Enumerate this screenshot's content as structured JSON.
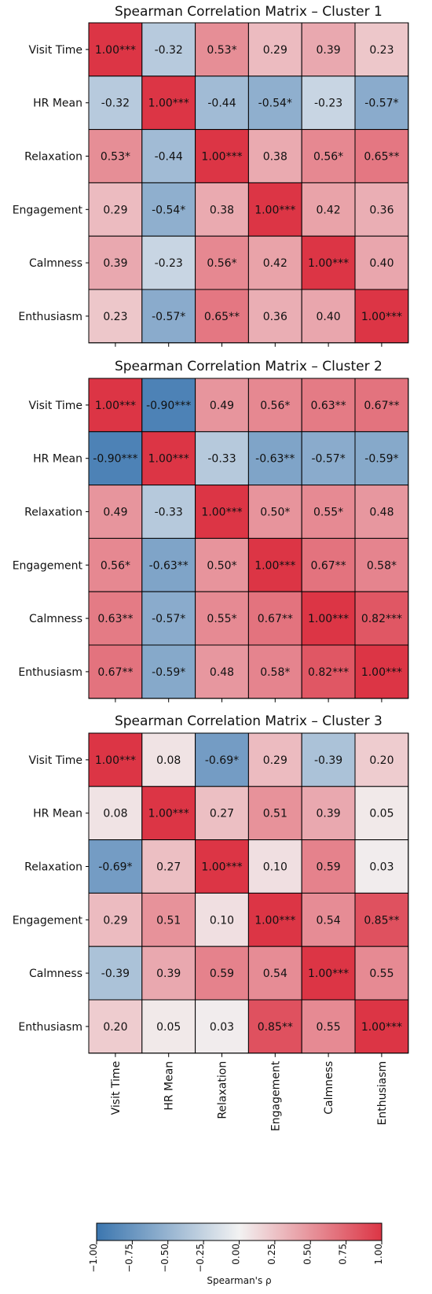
{
  "chart_data": [
    {
      "type": "heatmap",
      "title": "Spearman Correlation Matrix – Cluster 1",
      "rows": [
        "Visit Time",
        "HR Mean",
        "Relaxation",
        "Engagement",
        "Calmness",
        "Enthusiasm"
      ],
      "cols": [
        "Visit Time",
        "HR Mean",
        "Relaxation",
        "Engagement",
        "Calmness",
        "Enthusiasm"
      ],
      "values": [
        [
          1.0,
          -0.32,
          0.53,
          0.29,
          0.39,
          0.23
        ],
        [
          -0.32,
          1.0,
          -0.44,
          -0.54,
          -0.23,
          -0.57
        ],
        [
          0.53,
          -0.44,
          1.0,
          0.38,
          0.56,
          0.65
        ],
        [
          0.29,
          -0.54,
          0.38,
          1.0,
          0.42,
          0.36
        ],
        [
          0.39,
          -0.23,
          0.56,
          0.42,
          1.0,
          0.4
        ],
        [
          0.23,
          -0.57,
          0.65,
          0.36,
          0.4,
          1.0
        ]
      ],
      "labels": [
        [
          "1.00***",
          "-0.32",
          "0.53*",
          "0.29",
          "0.39",
          "0.23"
        ],
        [
          "-0.32",
          "1.00***",
          "-0.44",
          "-0.54*",
          "-0.23",
          "-0.57*"
        ],
        [
          "0.53*",
          "-0.44",
          "1.00***",
          "0.38",
          "0.56*",
          "0.65**"
        ],
        [
          "0.29",
          "-0.54*",
          "0.38",
          "1.00***",
          "0.42",
          "0.36"
        ],
        [
          "0.39",
          "-0.23",
          "0.56*",
          "0.42",
          "1.00***",
          "0.40"
        ],
        [
          "0.23",
          "-0.57*",
          "0.65**",
          "0.36",
          "0.40",
          "1.00***"
        ]
      ]
    },
    {
      "type": "heatmap",
      "title": "Spearman Correlation Matrix – Cluster 2",
      "rows": [
        "Visit Time",
        "HR Mean",
        "Relaxation",
        "Engagement",
        "Calmness",
        "Enthusiasm"
      ],
      "cols": [
        "Visit Time",
        "HR Mean",
        "Relaxation",
        "Engagement",
        "Calmness",
        "Enthusiasm"
      ],
      "values": [
        [
          1.0,
          -0.9,
          0.49,
          0.56,
          0.63,
          0.67
        ],
        [
          -0.9,
          1.0,
          -0.33,
          -0.63,
          -0.57,
          -0.59
        ],
        [
          0.49,
          -0.33,
          1.0,
          0.5,
          0.55,
          0.48
        ],
        [
          0.56,
          -0.63,
          0.5,
          1.0,
          0.67,
          0.58
        ],
        [
          0.63,
          -0.57,
          0.55,
          0.67,
          1.0,
          0.82
        ],
        [
          0.67,
          -0.59,
          0.48,
          0.58,
          0.82,
          1.0
        ]
      ],
      "labels": [
        [
          "1.00***",
          "-0.90***",
          "0.49",
          "0.56*",
          "0.63**",
          "0.67**"
        ],
        [
          "-0.90***",
          "1.00***",
          "-0.33",
          "-0.63**",
          "-0.57*",
          "-0.59*"
        ],
        [
          "0.49",
          "-0.33",
          "1.00***",
          "0.50*",
          "0.55*",
          "0.48"
        ],
        [
          "0.56*",
          "-0.63**",
          "0.50*",
          "1.00***",
          "0.67**",
          "0.58*"
        ],
        [
          "0.63**",
          "-0.57*",
          "0.55*",
          "0.67**",
          "1.00***",
          "0.82***"
        ],
        [
          "0.67**",
          "-0.59*",
          "0.48",
          "0.58*",
          "0.82***",
          "1.00***"
        ]
      ]
    },
    {
      "type": "heatmap",
      "title": "Spearman Correlation Matrix – Cluster 3",
      "rows": [
        "Visit Time",
        "HR Mean",
        "Relaxation",
        "Engagement",
        "Calmness",
        "Enthusiasm"
      ],
      "cols": [
        "Visit Time",
        "HR Mean",
        "Relaxation",
        "Engagement",
        "Calmness",
        "Enthusiasm"
      ],
      "values": [
        [
          1.0,
          0.08,
          -0.69,
          0.29,
          -0.39,
          0.2
        ],
        [
          0.08,
          1.0,
          0.27,
          0.51,
          0.39,
          0.05
        ],
        [
          -0.69,
          0.27,
          1.0,
          0.1,
          0.59,
          0.03
        ],
        [
          0.29,
          0.51,
          0.1,
          1.0,
          0.54,
          0.85
        ],
        [
          -0.39,
          0.39,
          0.59,
          0.54,
          1.0,
          0.55
        ],
        [
          0.2,
          0.05,
          0.03,
          0.85,
          0.55,
          1.0
        ]
      ],
      "labels": [
        [
          "1.00***",
          "0.08",
          "-0.69*",
          "0.29",
          "-0.39",
          "0.20"
        ],
        [
          "0.08",
          "1.00***",
          "0.27",
          "0.51",
          "0.39",
          "0.05"
        ],
        [
          "-0.69*",
          "0.27",
          "1.00***",
          "0.10",
          "0.59",
          "0.03"
        ],
        [
          "0.29",
          "0.51",
          "0.10",
          "1.00***",
          "0.54",
          "0.85**"
        ],
        [
          "-0.39",
          "0.39",
          "0.59",
          "0.54",
          "1.00***",
          "0.55"
        ],
        [
          "0.20",
          "0.05",
          "0.03",
          "0.85**",
          "0.55",
          "1.00***"
        ]
      ],
      "xticks": [
        "Visit Time",
        "HR Mean",
        "Relaxation",
        "Engagement",
        "Calmness",
        "Enthusiasm"
      ]
    }
  ],
  "colorbar": {
    "label": "Spearman's ρ",
    "range": [
      -1.0,
      1.0
    ],
    "ticks": [
      "−1.00",
      "−0.75",
      "−0.50",
      "−0.25",
      "0.00",
      "0.25",
      "0.50",
      "0.75",
      "1.00"
    ],
    "colors": {
      "negative": "#3b76af",
      "neutral": "#f2f2f2",
      "positive": "#dc3545"
    }
  }
}
